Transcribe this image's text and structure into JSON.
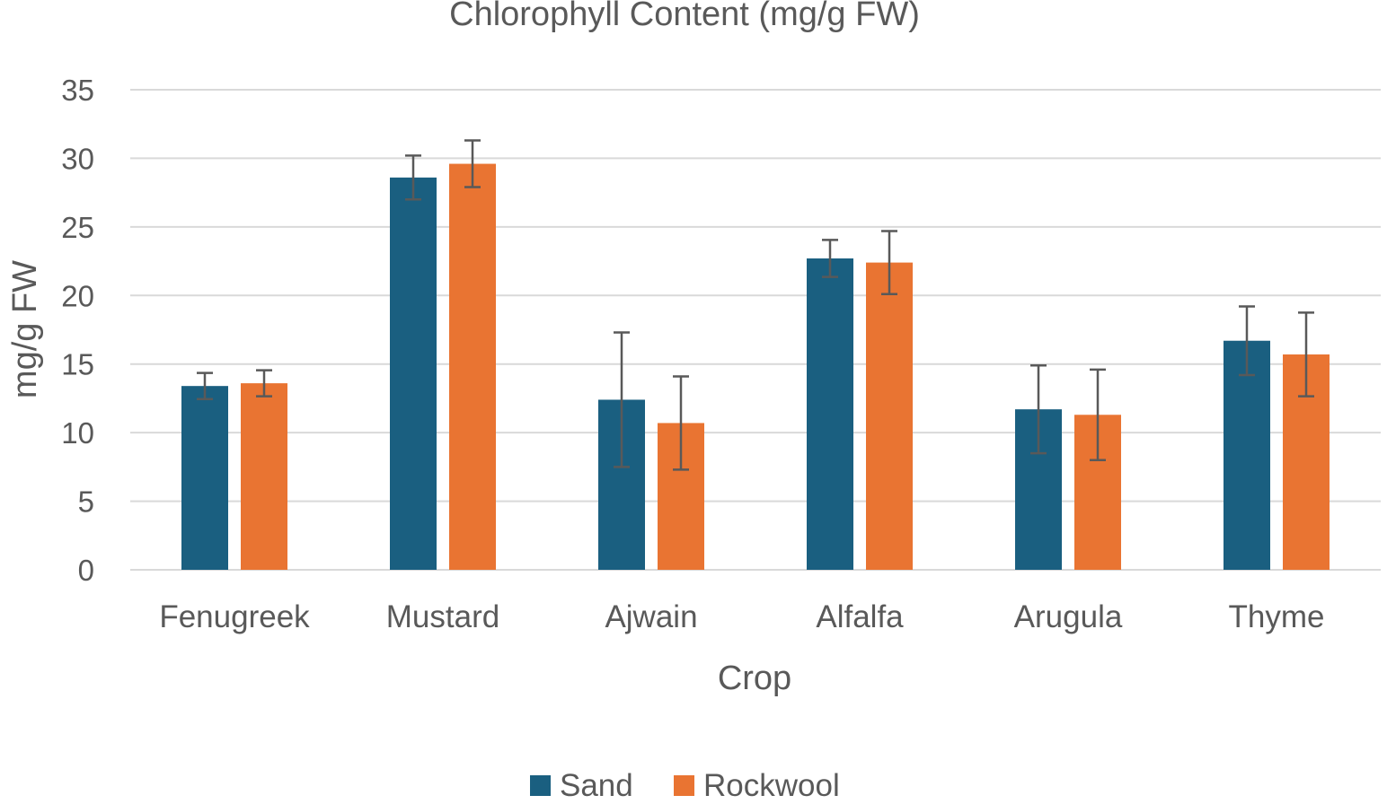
{
  "chart_data": {
    "type": "bar",
    "title": "Chlorophyll Content (mg/g FW)",
    "xlabel": "Crop",
    "ylabel": "mg/g FW",
    "ylim": [
      0,
      35
    ],
    "yticks": [
      0,
      5,
      10,
      15,
      20,
      25,
      30,
      35
    ],
    "grid": true,
    "legend_position": "bottom",
    "categories": [
      "Fenugreek",
      "Mustard",
      "Ajwain",
      "Alfalfa",
      "Arugula",
      "Thyme"
    ],
    "series": [
      {
        "name": "Sand",
        "color": "#1a5f80",
        "values": [
          13.4,
          28.6,
          12.4,
          22.7,
          11.7,
          16.7
        ],
        "error": [
          0.95,
          1.6,
          4.9,
          1.35,
          3.2,
          2.5
        ]
      },
      {
        "name": "Rockwool",
        "color": "#e97432",
        "values": [
          13.6,
          29.6,
          10.7,
          22.4,
          11.3,
          15.7
        ],
        "error": [
          0.95,
          1.7,
          3.4,
          2.3,
          3.3,
          3.05
        ]
      }
    ]
  }
}
